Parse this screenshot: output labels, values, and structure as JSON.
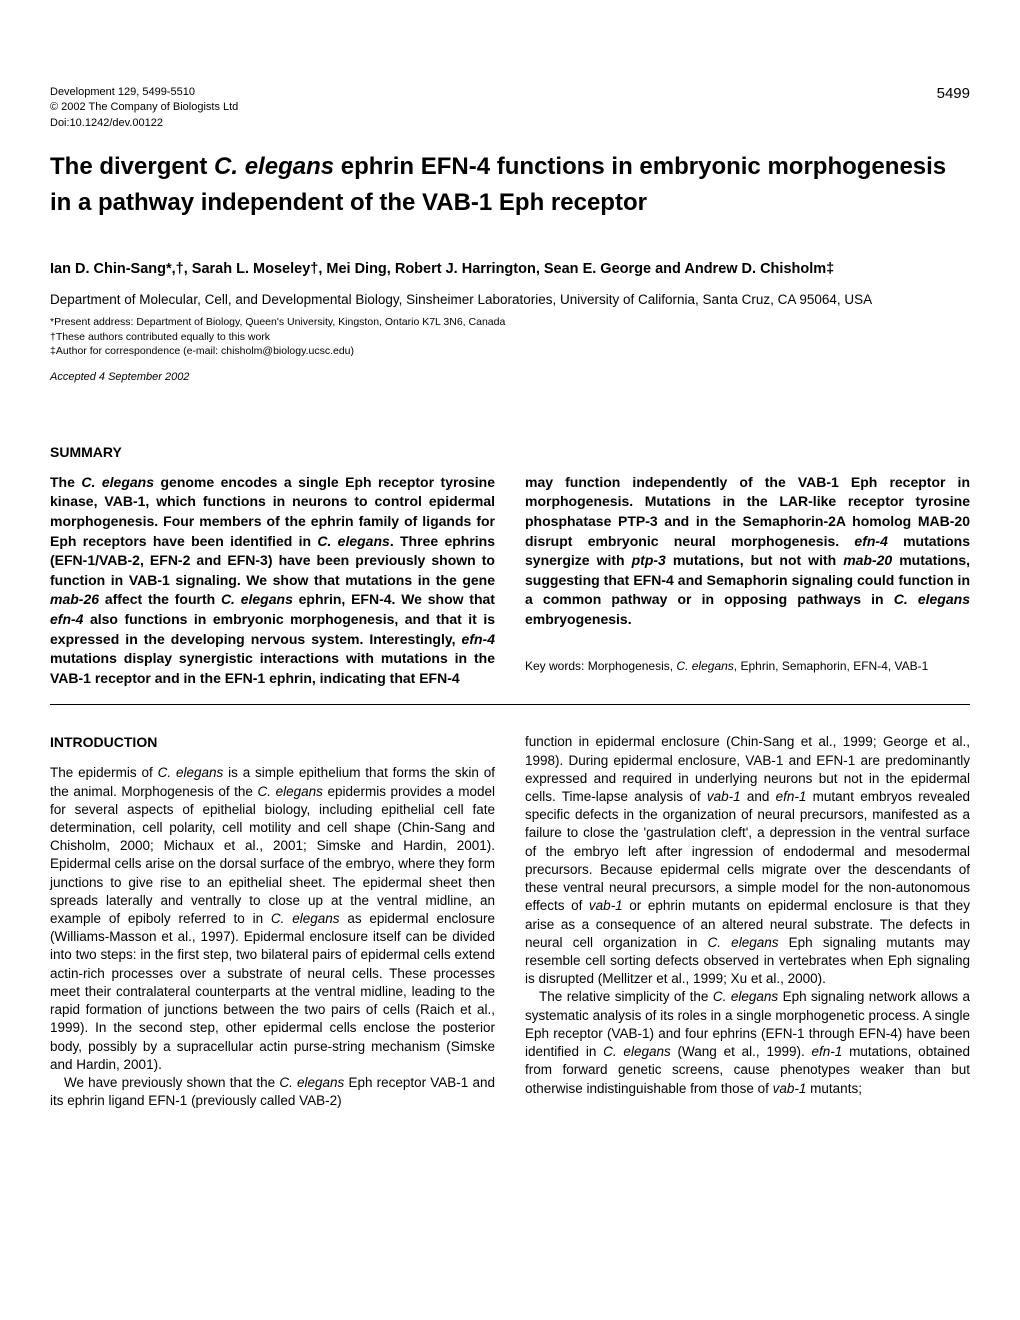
{
  "meta": {
    "journal_line": "Development 129, 5499-5510",
    "copyright": "© 2002 The Company of Biologists Ltd",
    "doi": "Doi:10.1242/dev.00122",
    "page_number": "5499"
  },
  "title_pre": "The divergent ",
  "title_ital": "C. elegans",
  "title_post": " ephrin EFN-4 functions in embryonic morphogenesis in a pathway independent of the VAB-1 Eph receptor",
  "authors": "Ian D. Chin-Sang*,†, Sarah L. Moseley†, Mei Ding, Robert J. Harrington, Sean E. George and Andrew D. Chisholm‡",
  "affiliation": "Department of Molecular, Cell, and Developmental Biology, Sinsheimer Laboratories, University of California, Santa Cruz, CA 95064, USA",
  "footnote1": "*Present address: Department of Biology, Queen's University, Kingston, Ontario K7L 3N6, Canada",
  "footnote2": "†These authors contributed equally to this work",
  "footnote3": "‡Author for correspondence (e-mail: chisholm@biology.ucsc.edu)",
  "accepted": "Accepted 4 September 2002",
  "summary_header": "SUMMARY",
  "summary_left_1a": "The ",
  "summary_left_1b": "C. elegans",
  "summary_left_1c": " genome encodes a single Eph receptor tyrosine kinase, VAB-1, which functions in neurons to control epidermal morphogenesis. Four members of the ephrin family of ligands for Eph receptors have been identified in ",
  "summary_left_1d": "C. elegans",
  "summary_left_1e": ". Three ephrins (EFN-1/VAB-2, EFN-2 and EFN-3) have been previously shown to function in VAB-1 signaling. We show that mutations in the gene ",
  "summary_left_1f": "mab-26",
  "summary_left_1g": " affect the fourth ",
  "summary_left_1h": "C. elegans",
  "summary_left_1i": " ephrin, EFN-4. We show that ",
  "summary_left_1j": "efn-4",
  "summary_left_1k": " also functions in embryonic morphogenesis, and that it is expressed in the developing nervous system. Interestingly, ",
  "summary_left_1l": "efn-4",
  "summary_left_1m": " mutations display synergistic interactions with mutations in the VAB-1 receptor and in the EFN-1 ephrin, indicating that EFN-4",
  "summary_right_1a": "may function independently of the VAB-1 Eph receptor in morphogenesis. Mutations in the LAR-like receptor tyrosine phosphatase PTP-3 and in the Semaphorin-2A homolog MAB-20 disrupt embryonic neural morphogenesis. ",
  "summary_right_1b": "efn-4",
  "summary_right_1c": " mutations synergize with ",
  "summary_right_1d": "ptp-3",
  "summary_right_1e": " mutations, but not with ",
  "summary_right_1f": "mab-20",
  "summary_right_1g": " mutations, suggesting that EFN-4 and Semaphorin signaling could function in a common pathway or in opposing pathways in ",
  "summary_right_1h": "C. elegans",
  "summary_right_1i": " embryogenesis.",
  "keywords_label": "Key words: ",
  "keywords_text": "Morphogenesis, ",
  "keywords_ital": "C. elegans",
  "keywords_rest": ", Ephrin, Semaphorin, EFN-4, VAB-1",
  "intro_header": "INTRODUCTION",
  "intro_left_p1a": "The epidermis of ",
  "intro_left_p1b": "C. elegans",
  "intro_left_p1c": " is a simple epithelium that forms the skin of the animal. Morphogenesis of the ",
  "intro_left_p1d": "C. elegans",
  "intro_left_p1e": " epidermis provides a model for several aspects of epithelial biology, including epithelial cell fate determination, cell polarity, cell motility and cell shape (Chin-Sang and Chisholm, 2000; Michaux et al., 2001; Simske and Hardin, 2001). Epidermal cells arise on the dorsal surface of the embryo, where they form junctions to give rise to an epithelial sheet. The epidermal sheet then spreads laterally and ventrally to close up at the ventral midline, an example of epiboly referred to in ",
  "intro_left_p1f": "C. elegans",
  "intro_left_p1g": " as epidermal enclosure (Williams-Masson et al., 1997). Epidermal enclosure itself can be divided into two steps: in the first step, two bilateral pairs of epidermal cells extend actin-rich processes over a substrate of neural cells. These processes meet their contralateral counterparts at the ventral midline, leading to the rapid formation of junctions between the two pairs of cells (Raich et al., 1999). In the second step, other epidermal cells enclose the posterior body, possibly by a supracellular actin purse-string mechanism (Simske and Hardin, 2001).",
  "intro_left_p2a": "We have previously shown that the ",
  "intro_left_p2b": "C. elegans",
  "intro_left_p2c": " Eph receptor VAB-1 and its ephrin ligand EFN-1 (previously called VAB-2)",
  "intro_right_p1a": "function in epidermal enclosure (Chin-Sang et al., 1999; George et al., 1998). During epidermal enclosure, VAB-1 and EFN-1 are predominantly expressed and required in underlying neurons but not in the epidermal cells. Time-lapse analysis of ",
  "intro_right_p1b": "vab-1",
  "intro_right_p1c": " and ",
  "intro_right_p1d": "efn-1",
  "intro_right_p1e": " mutant embryos revealed specific defects in the organization of neural precursors, manifested as a failure to close the 'gastrulation cleft', a depression in the ventral surface of the embryo left after ingression of endodermal and mesodermal precursors. Because epidermal cells migrate over the descendants of these ventral neural precursors, a simple model for the non-autonomous effects of ",
  "intro_right_p1f": "vab-1",
  "intro_right_p1g": " or ephrin mutants on epidermal enclosure is that they arise as a consequence of an altered neural substrate. The defects in neural cell organization in ",
  "intro_right_p1h": "C. elegans",
  "intro_right_p1i": " Eph signaling mutants may resemble cell sorting defects observed in vertebrates when Eph signaling is disrupted (Mellitzer et al., 1999; Xu et al., 2000).",
  "intro_right_p2a": "The relative simplicity of the ",
  "intro_right_p2b": "C. elegans",
  "intro_right_p2c": " Eph signaling network allows a systematic analysis of its roles in a single morphogenetic process. A single Eph receptor (VAB-1) and four ephrins (EFN-1 through EFN-4) have been identified in ",
  "intro_right_p2d": "C. elegans",
  "intro_right_p2e": " (Wang et al., 1999). ",
  "intro_right_p2f": "efn-1",
  "intro_right_p2g": " mutations, obtained from forward genetic screens, cause phenotypes weaker than but otherwise indistinguishable from those of ",
  "intro_right_p2h": "vab-1",
  "intro_right_p2i": " mutants;"
}
